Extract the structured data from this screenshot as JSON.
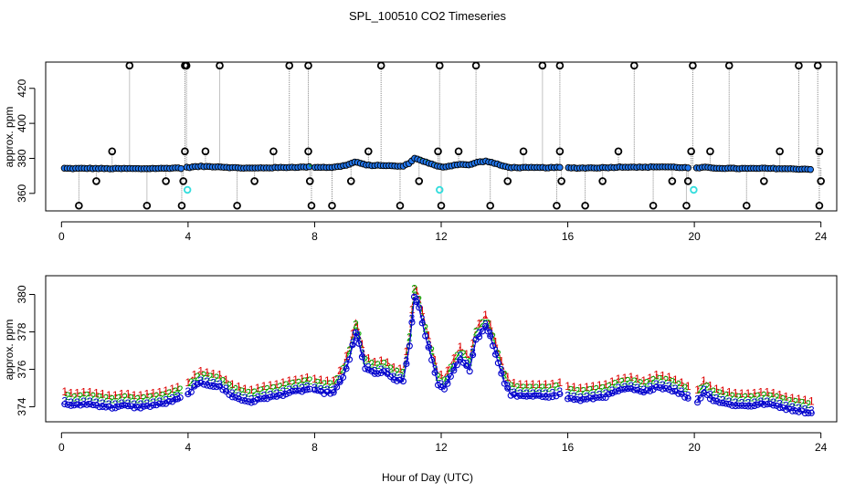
{
  "title": "SPL_100510  CO2 Timeseries",
  "xlabel": "Hour of Day (UTC)",
  "colors": {
    "circles_outline": "#000000",
    "series1": "#dd0000",
    "series2": "#00aa00",
    "series3": "#0000cc",
    "highlight": "#33dddd",
    "line": "#444444",
    "mean_fill": "#2277ee"
  },
  "chart_data": [
    {
      "type": "scatter",
      "panel": "top",
      "title": "SPL_100510  CO2 Timeseries",
      "ylabel": "approx. ppm",
      "xlabel": "",
      "xlim": [
        -0.5,
        24.5
      ],
      "ylim": [
        350,
        435
      ],
      "xticks": [
        0,
        4,
        8,
        12,
        16,
        20,
        24
      ],
      "yticks": [
        360,
        380,
        400,
        420
      ],
      "spikes_high": [
        2.15,
        3.9,
        3.95,
        5.0,
        7.2,
        7.8,
        10.1,
        11.95,
        13.1,
        15.2,
        15.75,
        18.1,
        19.95,
        21.1,
        23.3,
        23.9
      ],
      "spikes_mid": [
        1.6,
        3.9,
        4.55,
        6.7,
        7.8,
        9.7,
        11.9,
        12.55,
        14.6,
        15.75,
        17.6,
        19.9,
        20.5,
        22.7,
        23.95
      ],
      "spikes_low": [
        0.55,
        2.7,
        3.8,
        5.55,
        7.9,
        8.55,
        10.7,
        12.0,
        13.55,
        15.65,
        16.55,
        18.7,
        19.75,
        21.65,
        23.95
      ],
      "spikes_lower": [
        1.1,
        3.3,
        3.85,
        6.1,
        7.85,
        9.15,
        11.3,
        14.1,
        15.8,
        17.1,
        19.3,
        19.8,
        22.2,
        24.0
      ],
      "spike_values": {
        "high": 433,
        "mid": 384,
        "lower": 367,
        "low": 353
      },
      "highlight_points": [
        [
          3.98,
          362
        ],
        [
          11.95,
          362
        ],
        [
          19.98,
          362
        ]
      ]
    },
    {
      "type": "line",
      "panel": "bottom",
      "ylabel": "approx. ppm",
      "xlabel": "Hour of Day (UTC)",
      "xlim": [
        -0.5,
        24.5
      ],
      "ylim": [
        373.2,
        381.0
      ],
      "xticks": [
        0,
        4,
        8,
        12,
        16,
        20,
        24
      ],
      "yticks": [
        374,
        376,
        378,
        380
      ],
      "series": [
        {
          "name": "1",
          "marker": "1",
          "offset": 0.4
        },
        {
          "name": "2",
          "marker": "2",
          "offset": 0.2
        },
        {
          "name": "3",
          "marker": "3",
          "offset": -0.1
        },
        {
          "name": "o",
          "marker": "o",
          "offset": -0.25
        }
      ],
      "segments": [
        {
          "x": [
            0.1,
            0.4,
            0.8,
            1.2,
            1.6,
            2.0,
            2.4,
            2.8,
            3.2,
            3.6,
            3.75
          ],
          "y": [
            374.4,
            374.3,
            374.4,
            374.3,
            374.2,
            374.3,
            374.2,
            374.3,
            374.4,
            374.6,
            374.7
          ]
        },
        {
          "x": [
            4.0,
            4.2,
            4.4,
            4.7,
            5.0,
            5.4,
            5.7,
            6.0,
            6.4,
            6.8,
            7.2,
            7.6,
            7.85
          ],
          "y": [
            374.9,
            375.3,
            375.5,
            375.4,
            375.3,
            374.8,
            374.6,
            374.5,
            374.7,
            374.8,
            375.0,
            375.1,
            375.2
          ]
        },
        {
          "x": [
            8.0,
            8.3,
            8.6,
            8.9,
            9.1,
            9.3,
            9.4,
            9.6,
            9.9,
            10.2,
            10.5,
            10.8,
            11.0,
            11.15,
            11.3,
            11.5,
            11.7,
            11.9,
            12.1,
            12.4,
            12.6,
            12.9,
            13.1,
            13.4,
            13.55,
            13.8,
            14.0,
            14.2,
            14.5,
            14.8,
            15.1,
            15.4,
            15.75
          ],
          "y": [
            375.1,
            375.0,
            375.0,
            375.8,
            376.8,
            378.2,
            377.6,
            376.3,
            376.0,
            376.1,
            375.7,
            375.6,
            377.5,
            380.1,
            379.5,
            378.0,
            376.8,
            375.4,
            375.2,
            376.2,
            376.8,
            376.2,
            377.8,
            378.5,
            378.0,
            376.6,
            375.5,
            374.9,
            374.8,
            374.8,
            374.8,
            374.8,
            374.9
          ]
        },
        {
          "x": [
            16.0,
            16.4,
            16.8,
            17.2,
            17.6,
            18.0,
            18.4,
            18.8,
            19.2,
            19.6,
            19.8
          ],
          "y": [
            374.7,
            374.6,
            374.7,
            374.8,
            375.1,
            375.2,
            375.0,
            375.3,
            375.2,
            374.9,
            374.7
          ]
        },
        {
          "x": [
            20.1,
            20.3,
            20.6,
            21.0,
            21.4,
            21.8,
            22.2,
            22.6,
            23.0,
            23.4,
            23.7
          ],
          "y": [
            374.5,
            375.0,
            374.6,
            374.4,
            374.3,
            374.3,
            374.4,
            374.3,
            374.1,
            374.0,
            373.9
          ]
        }
      ]
    }
  ]
}
